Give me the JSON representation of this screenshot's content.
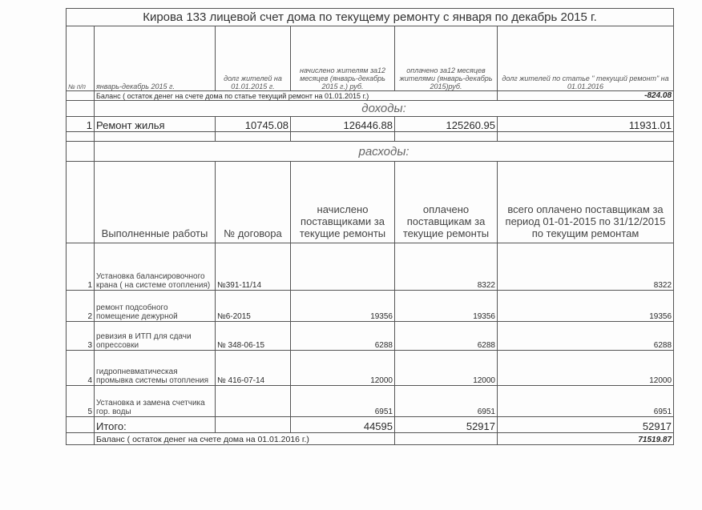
{
  "title": "Кирова 133 лицевой счет дома по текущему ремонту с января по декабрь   2015 г.",
  "header": {
    "num": "№ п/п",
    "period": "январь-декабрь   2015 г.",
    "debt_start": "долг жителей на 01.01.2015 г.",
    "charged": "начислено жителям за12 месяцев (январь-декабрь 2015 г.) руб.",
    "paid": "оплачено за12 месяцев жителями (январь-декабрь 2015)руб.",
    "debt_end": "долг жителей по статье \" текущий ремонт\" на 01.01.2016"
  },
  "balance_start": {
    "label": "Баланс ( остаток денег на счете дома по статье текущий ремонт на 01.01.2015 г.)",
    "value": "-824.08"
  },
  "income": {
    "heading": "доходы:",
    "rows": [
      {
        "num": "1",
        "name": "Ремонт жилья",
        "debt_start": "10745.08",
        "charged": "126446.88",
        "paid": "125260.95",
        "debt_end": "11931.01"
      }
    ]
  },
  "expenses": {
    "heading": "расходы:",
    "columns": {
      "works": "Выполненные работы",
      "contract": "№ договора",
      "charged": "начислено поставщиками за текущие ремонты",
      "paid": "оплачено поставщикам за текущие ремонты",
      "total_paid": "всего оплачено поставщикам за период 01-01-2015 по 31/12/2015 по текущим ремонтам"
    },
    "rows": [
      {
        "num": "1",
        "name": "Установка балансировочного крана ( на системе отопления)",
        "contract": "№391-11/14",
        "charged": "",
        "paid": "8322",
        "total_paid": "8322"
      },
      {
        "num": "2",
        "name": "ремонт подсобного помещение дежурной",
        "contract": "№6-2015",
        "charged": "19356",
        "paid": "19356",
        "total_paid": "19356"
      },
      {
        "num": "3",
        "name": "ревизия в ИТП для сдачи опрессовки",
        "contract": "№ 348-06-15",
        "charged": "6288",
        "paid": "6288",
        "total_paid": "6288"
      },
      {
        "num": "4",
        "name": "гидропневматическая промывка системы отопления",
        "contract": "№ 416-07-14",
        "charged": "12000",
        "paid": "12000",
        "total_paid": "12000"
      },
      {
        "num": "5",
        "name": "Установка и замена счетчика гор. воды",
        "contract": "",
        "charged": "6951",
        "paid": "6951",
        "total_paid": "6951"
      }
    ],
    "total": {
      "label": "Итого:",
      "charged": "44595",
      "paid": "52917",
      "total_paid": "52917"
    }
  },
  "balance_end": {
    "label": "Баланс ( остаток денег на счете дома на 01.01.2016 г.)",
    "value": "71519.87"
  }
}
